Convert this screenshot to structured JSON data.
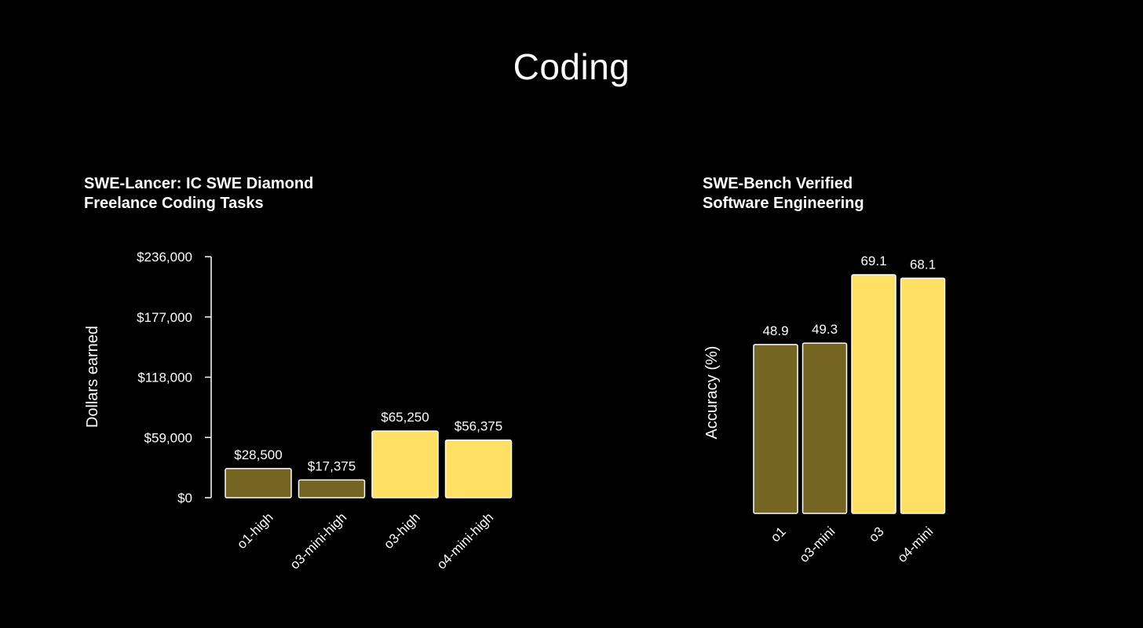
{
  "page": {
    "title": "Coding"
  },
  "colors": {
    "background": "#000000",
    "text": "#ffffff",
    "bar_dark": "#756523",
    "bar_light": "#ffe063",
    "bar_stroke": "#ffffff"
  },
  "chart_data": [
    {
      "type": "bar",
      "title": "SWE-Lancer: IC SWE Diamond",
      "subtitle": "Freelance Coding Tasks",
      "xlabel": "",
      "ylabel": "Dollars earned",
      "categories": [
        "o1-high",
        "o3-mini-high",
        "o3-high",
        "o4-mini-high"
      ],
      "values": [
        28500,
        17375,
        65250,
        56375
      ],
      "value_labels": [
        "$28,500",
        "$17,375",
        "$65,250",
        "$56,375"
      ],
      "bar_colors": [
        "#756523",
        "#756523",
        "#ffe063",
        "#ffe063"
      ],
      "ylim": [
        0,
        236000
      ],
      "yticks": [
        0,
        59000,
        118000,
        177000,
        236000
      ],
      "ytick_labels": [
        "$0",
        "$59,000",
        "$118,000",
        "$177,000",
        "$236,000"
      ],
      "grid": false,
      "legend": "none"
    },
    {
      "type": "bar",
      "title": "SWE-Bench Verified",
      "subtitle": "Software Engineering",
      "xlabel": "",
      "ylabel": "Accuracy (%)",
      "categories": [
        "o1",
        "o3-mini",
        "o3",
        "o4-mini"
      ],
      "values": [
        48.9,
        49.3,
        69.1,
        68.1
      ],
      "value_labels": [
        "48.9",
        "49.3",
        "69.1",
        "68.1"
      ],
      "bar_colors": [
        "#756523",
        "#756523",
        "#ffe063",
        "#ffe063"
      ],
      "ylim": [
        0,
        100
      ],
      "grid": false,
      "legend": "none"
    }
  ]
}
